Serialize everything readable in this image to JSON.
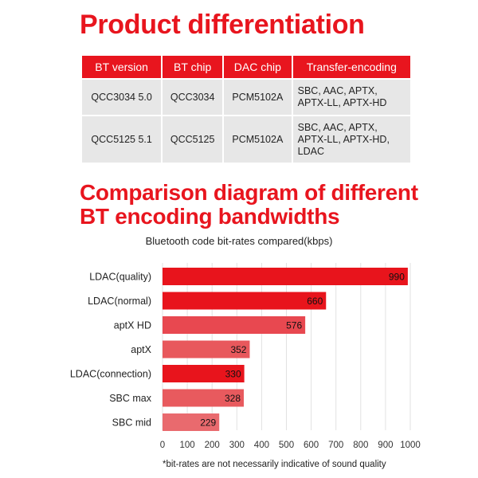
{
  "heading1": "Product differentiation",
  "table": {
    "headers": [
      "BT version",
      "BT chip",
      "DAC chip",
      "Transfer-encoding"
    ],
    "rows": [
      {
        "bt_version": "QCC3034  5.0",
        "bt_chip": "QCC3034",
        "dac_chip": "PCM5102A",
        "encoding_lines": [
          "SBC, AAC, APTX,",
          "APTX-LL, APTX-HD"
        ]
      },
      {
        "bt_version": "QCC5125  5.1",
        "bt_chip": "QCC5125",
        "dac_chip": "PCM5102A",
        "encoding_lines": [
          "SBC, AAC, APTX,",
          "APTX-LL, APTX-HD,",
          "LDAC"
        ]
      }
    ]
  },
  "heading2_lines": [
    "Comparison diagram of different",
    "BT encoding bandwidths"
  ],
  "chart_data": {
    "type": "bar",
    "orientation": "horizontal",
    "title": "Bluetooth code bit-rates compared(kbps)",
    "categories": [
      "LDAC(quality)",
      "LDAC(normal)",
      "aptX HD",
      "aptX",
      "LDAC(connection)",
      "SBC max",
      "SBC mid"
    ],
    "values": [
      990,
      660,
      576,
      352,
      330,
      328,
      229
    ],
    "xlim": [
      0,
      1000
    ],
    "xticks": [
      0,
      100,
      200,
      300,
      400,
      500,
      600,
      700,
      800,
      900,
      1000
    ],
    "grid": true,
    "bar_colors": [
      "#e8141c",
      "#e8141c",
      "#e84850",
      "#e8585c",
      "#e8141c",
      "#e85a5e",
      "#e96a6e"
    ],
    "footnote": "*bit-rates are not necessarily indicative of sound quality"
  }
}
